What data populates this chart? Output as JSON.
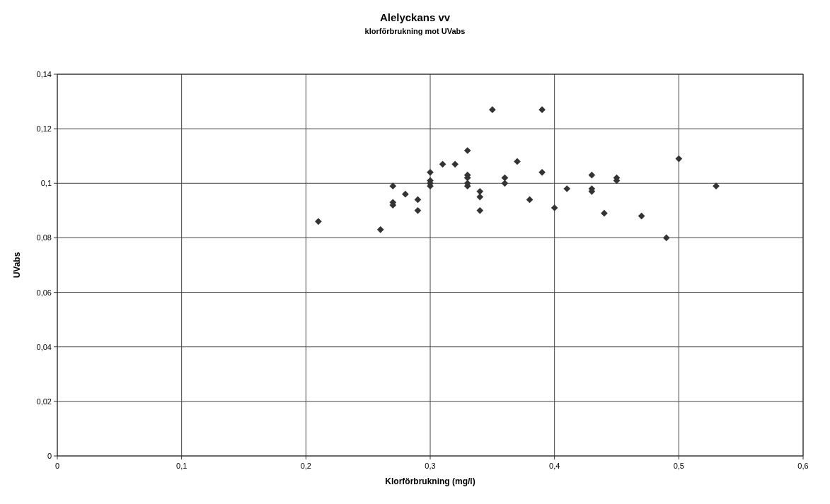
{
  "chart_data": {
    "type": "scatter",
    "title": "Alelyckans vv",
    "subtitle": "klorförbrukning mot UVabs",
    "xlabel": "Klorförbrukning (mg/l)",
    "ylabel": "UVabs",
    "xlim": [
      0,
      0.6
    ],
    "xticks": [
      {
        "value": 0,
        "label": "0"
      },
      {
        "value": 0.1,
        "label": "0,1"
      },
      {
        "value": 0.2,
        "label": "0,2"
      },
      {
        "value": 0.3,
        "label": "0,3"
      },
      {
        "value": 0.4,
        "label": "0,4"
      },
      {
        "value": 0.5,
        "label": "0,5"
      },
      {
        "value": 0.6,
        "label": "0,6"
      }
    ],
    "ylim": [
      0,
      0.14
    ],
    "yticks": [
      {
        "value": 0,
        "label": "0"
      },
      {
        "value": 0.02,
        "label": "0,02"
      },
      {
        "value": 0.04,
        "label": "0,04"
      },
      {
        "value": 0.06,
        "label": "0,06"
      },
      {
        "value": 0.08,
        "label": "0,08"
      },
      {
        "value": 0.1,
        "label": "0,1"
      },
      {
        "value": 0.12,
        "label": "0,12"
      },
      {
        "value": 0.14,
        "label": "0,14"
      }
    ],
    "grid": true,
    "marker": "diamond",
    "series": [
      {
        "color": "#333333",
        "x": [
          0.21,
          0.26,
          0.27,
          0.27,
          0.27,
          0.28,
          0.29,
          0.29,
          0.3,
          0.3,
          0.3,
          0.3,
          0.31,
          0.32,
          0.33,
          0.33,
          0.33,
          0.33,
          0.33,
          0.34,
          0.34,
          0.34,
          0.35,
          0.36,
          0.36,
          0.37,
          0.38,
          0.39,
          0.39,
          0.4,
          0.41,
          0.43,
          0.43,
          0.43,
          0.44,
          0.45,
          0.45,
          0.47,
          0.49,
          0.5,
          0.53
        ],
        "values": [
          0.086,
          0.083,
          0.099,
          0.093,
          0.092,
          0.096,
          0.094,
          0.09,
          0.104,
          0.101,
          0.1,
          0.099,
          0.107,
          0.107,
          0.112,
          0.103,
          0.102,
          0.1,
          0.099,
          0.097,
          0.095,
          0.09,
          0.127,
          0.102,
          0.1,
          0.108,
          0.094,
          0.127,
          0.104,
          0.091,
          0.098,
          0.103,
          0.098,
          0.097,
          0.089,
          0.102,
          0.101,
          0.088,
          0.08,
          0.109,
          0.099
        ]
      }
    ]
  }
}
